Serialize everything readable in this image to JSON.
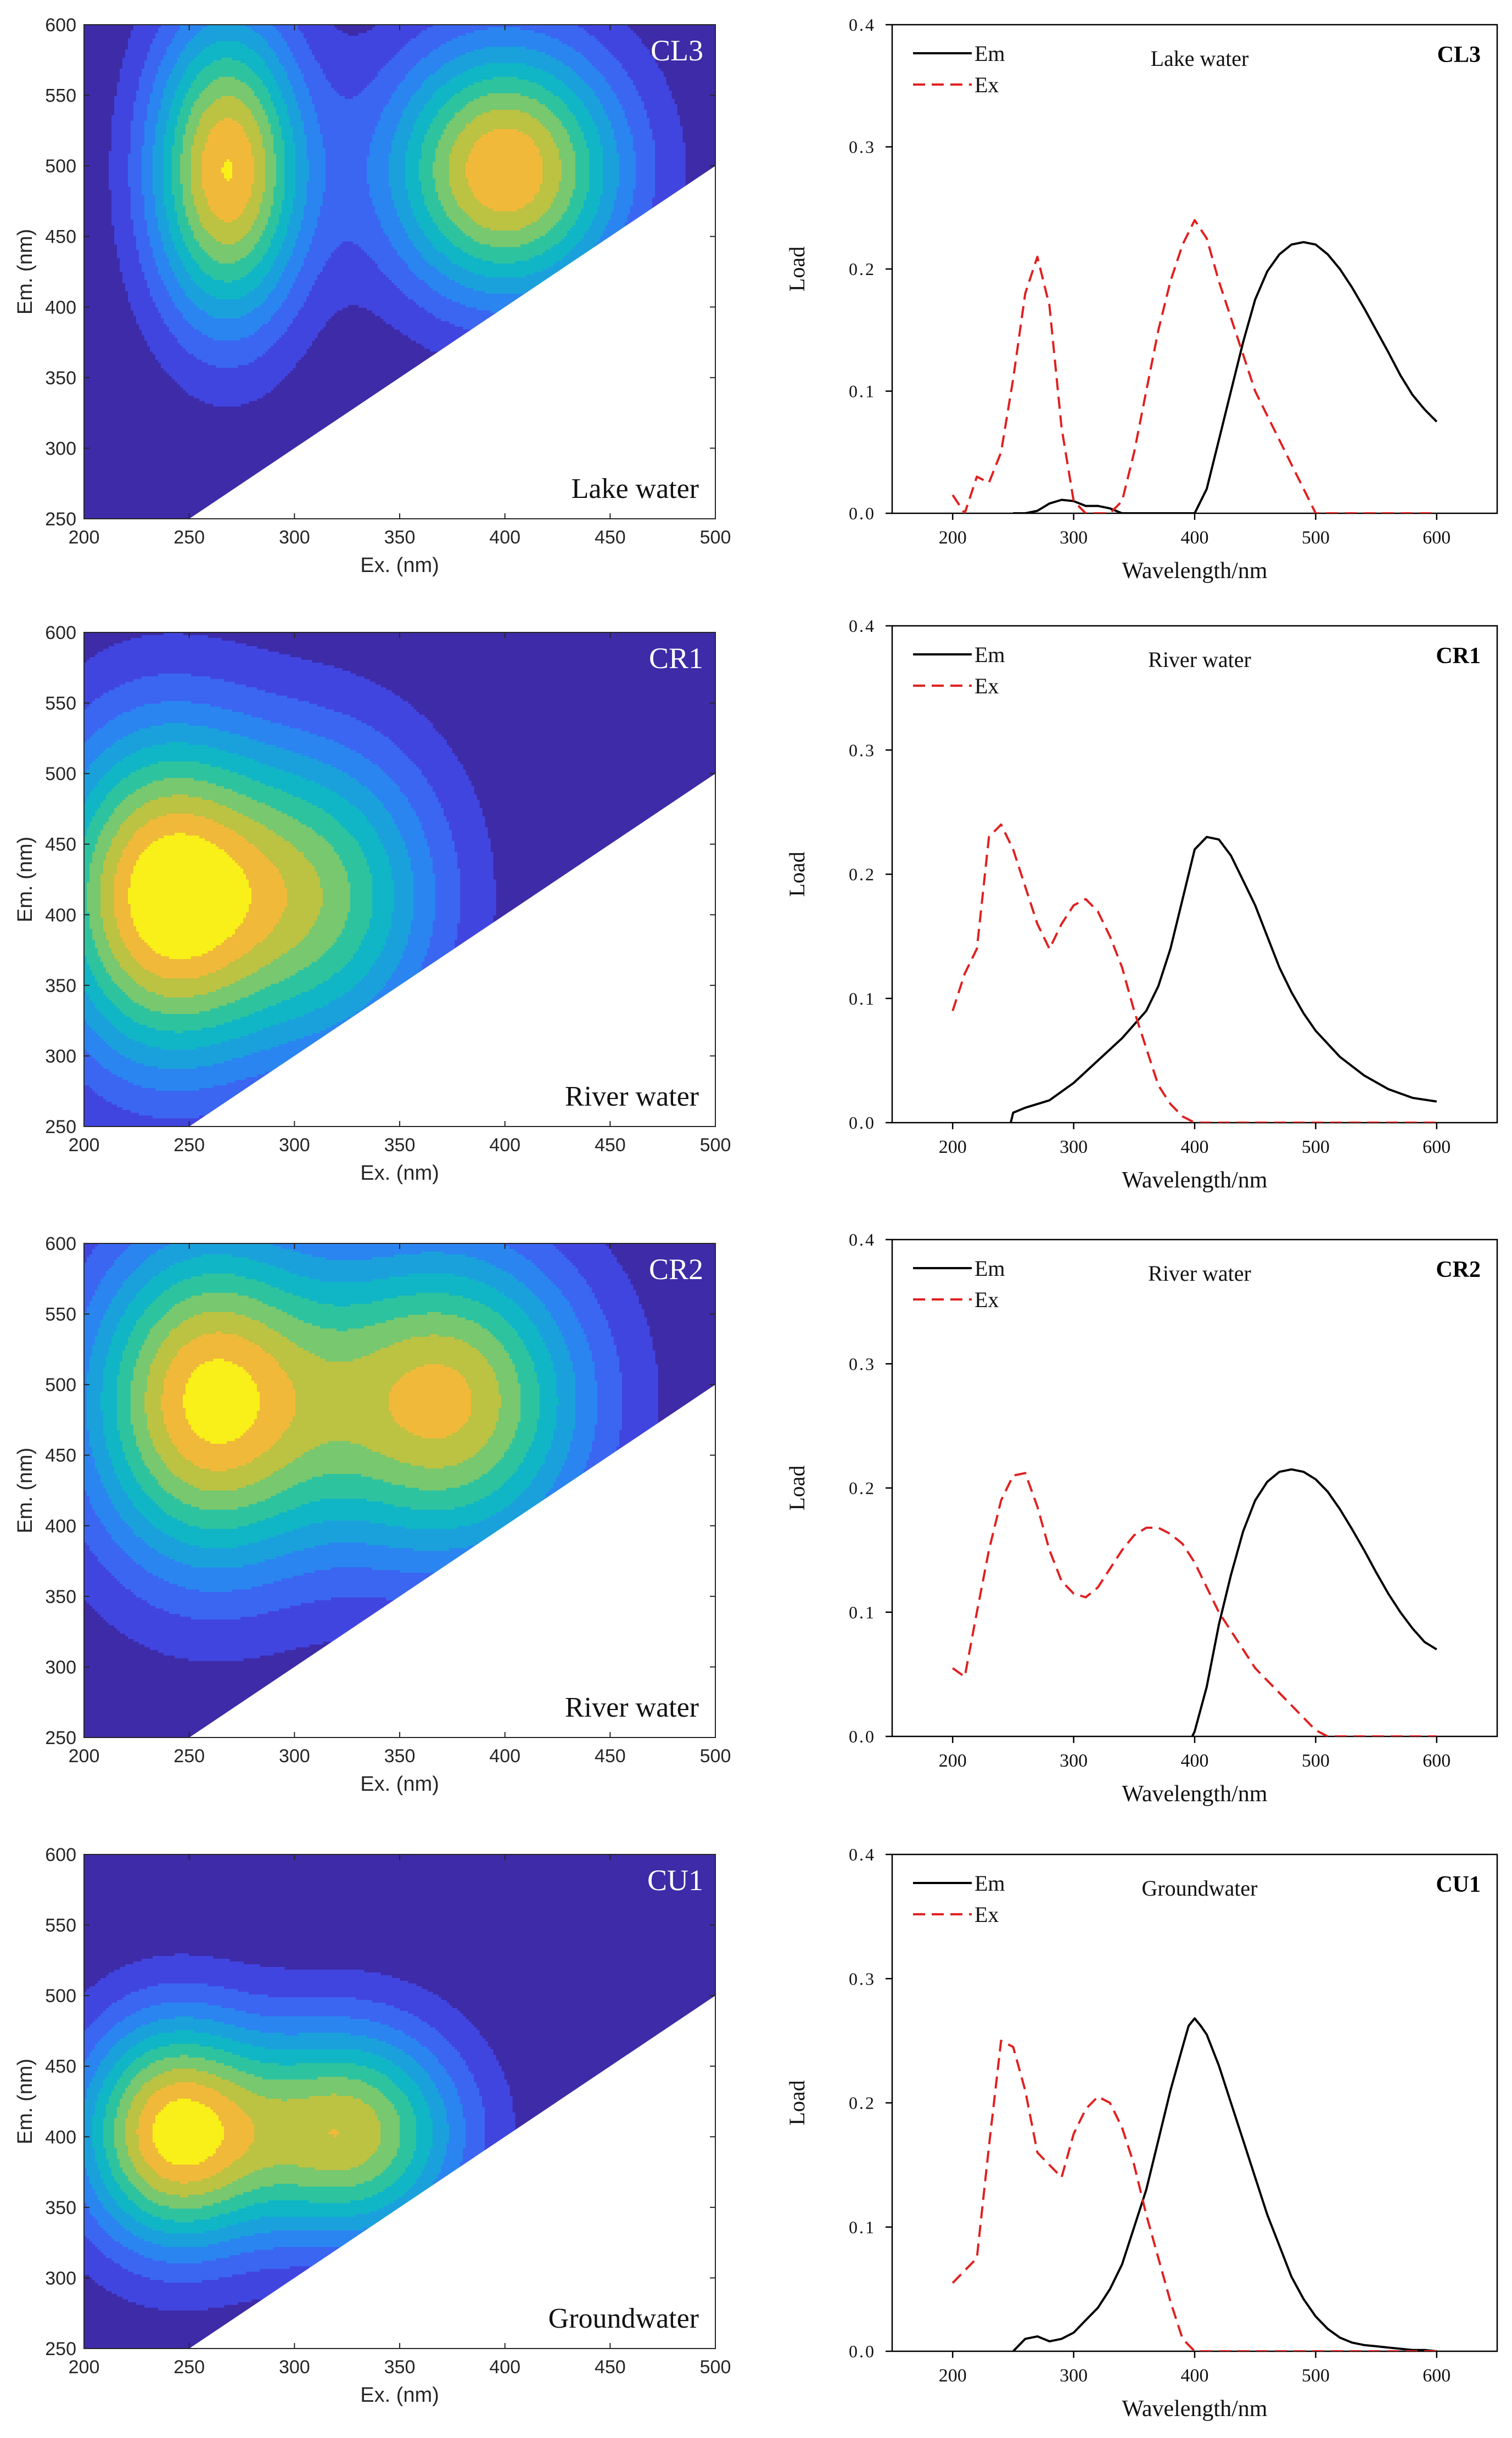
{
  "chart_data": [
    {
      "type": "heatmap",
      "component": "CL3",
      "water_label": "Lake water",
      "xlabel": "Ex. (nm)",
      "ylabel": "Em. (nm)",
      "xlim": [
        200,
        500
      ],
      "ylim": [
        250,
        600
      ],
      "xticks": [
        "200",
        "250",
        "300",
        "350",
        "400",
        "450",
        "500"
      ],
      "yticks": [
        "250",
        "300",
        "350",
        "400",
        "450",
        "500",
        "550",
        "600"
      ],
      "peaks": [
        {
          "ex": 268,
          "em": 497,
          "level": 10,
          "sx": 26,
          "sy": 78
        },
        {
          "ex": 400,
          "em": 497,
          "level": 10,
          "sx": 40,
          "sy": 65
        }
      ]
    },
    {
      "type": "line",
      "component": "CL3",
      "title": "Lake water",
      "xlabel": "Wavelength/nm",
      "ylabel": "Load",
      "xlim": [
        150,
        650
      ],
      "ylim": [
        0,
        0.4
      ],
      "xticks": [
        "200",
        "300",
        "400",
        "500",
        "600"
      ],
      "yticks": [
        "0.0",
        "0.1",
        "0.2",
        "0.3",
        "0.4"
      ],
      "legend": [
        "Em",
        "Ex"
      ],
      "series": [
        {
          "name": "Em",
          "x": [
            250,
            260,
            270,
            280,
            290,
            300,
            310,
            320,
            330,
            340,
            400,
            410,
            420,
            430,
            440,
            450,
            460,
            470,
            480,
            490,
            500,
            510,
            520,
            530,
            540,
            550,
            560,
            570,
            580,
            590,
            600
          ],
          "y": [
            0.0,
            0.0,
            0.002,
            0.008,
            0.011,
            0.01,
            0.006,
            0.006,
            0.004,
            0.0,
            0.0,
            0.02,
            0.06,
            0.1,
            0.14,
            0.175,
            0.198,
            0.212,
            0.22,
            0.222,
            0.22,
            0.212,
            0.2,
            0.185,
            0.168,
            0.15,
            0.132,
            0.113,
            0.097,
            0.085,
            0.075
          ]
        },
        {
          "name": "Ex",
          "x": [
            200,
            210,
            220,
            230,
            240,
            250,
            260,
            270,
            280,
            290,
            300,
            310,
            320,
            330,
            340,
            350,
            360,
            370,
            380,
            390,
            400,
            410,
            420,
            430,
            440,
            450,
            460,
            470,
            480,
            490,
            500,
            510,
            600
          ],
          "y": [
            0.015,
            0.0,
            0.03,
            0.025,
            0.05,
            0.11,
            0.18,
            0.21,
            0.17,
            0.07,
            0.01,
            0.0,
            0.0,
            0.0,
            0.01,
            0.05,
            0.1,
            0.15,
            0.19,
            0.22,
            0.24,
            0.225,
            0.19,
            0.16,
            0.13,
            0.1,
            0.08,
            0.06,
            0.04,
            0.02,
            0.0,
            0.0,
            0.0
          ]
        }
      ]
    },
    {
      "type": "heatmap",
      "component": "CR1",
      "water_label": "River water",
      "xlabel": "Ex. (nm)",
      "ylabel": "Em. (nm)",
      "xlim": [
        200,
        500
      ],
      "ylim": [
        250,
        600
      ],
      "xticks": [
        "200",
        "250",
        "300",
        "350",
        "400",
        "450",
        "500"
      ],
      "yticks": [
        "250",
        "300",
        "350",
        "400",
        "450",
        "500",
        "550",
        "600"
      ],
      "peaks": [
        {
          "ex": 235,
          "em": 413,
          "level": 10,
          "sx": 38,
          "sy": 85
        },
        {
          "ex": 313,
          "em": 413,
          "level": 6.8,
          "sx": 42,
          "sy": 80
        }
      ]
    },
    {
      "type": "line",
      "component": "CR1",
      "title": "River water",
      "xlabel": "Wavelength/nm",
      "ylabel": "Load",
      "xlim": [
        150,
        650
      ],
      "ylim": [
        0,
        0.4
      ],
      "xticks": [
        "200",
        "300",
        "400",
        "500",
        "600"
      ],
      "yticks": [
        "0.0",
        "0.1",
        "0.2",
        "0.3",
        "0.4"
      ],
      "legend": [
        "Em",
        "Ex"
      ],
      "series": [
        {
          "name": "Em",
          "x": [
            248,
            250,
            260,
            280,
            300,
            320,
            340,
            360,
            370,
            380,
            390,
            400,
            410,
            420,
            430,
            440,
            450,
            460,
            470,
            480,
            490,
            500,
            520,
            540,
            560,
            580,
            600
          ],
          "y": [
            0.0,
            0.008,
            0.012,
            0.018,
            0.032,
            0.05,
            0.068,
            0.09,
            0.11,
            0.14,
            0.18,
            0.22,
            0.23,
            0.228,
            0.215,
            0.195,
            0.175,
            0.15,
            0.125,
            0.105,
            0.088,
            0.074,
            0.053,
            0.038,
            0.027,
            0.02,
            0.017
          ]
        },
        {
          "name": "Ex",
          "x": [
            200,
            210,
            220,
            230,
            240,
            250,
            260,
            270,
            280,
            290,
            300,
            310,
            320,
            330,
            340,
            350,
            360,
            370,
            380,
            390,
            400,
            600
          ],
          "y": [
            0.09,
            0.12,
            0.14,
            0.23,
            0.24,
            0.22,
            0.19,
            0.16,
            0.14,
            0.16,
            0.175,
            0.18,
            0.17,
            0.15,
            0.125,
            0.09,
            0.06,
            0.03,
            0.015,
            0.005,
            0.0,
            0.0
          ]
        }
      ]
    },
    {
      "type": "heatmap",
      "component": "CR2",
      "water_label": "River water",
      "xlabel": "Ex. (nm)",
      "ylabel": "Em. (nm)",
      "xlim": [
        200,
        500
      ],
      "ylim": [
        250,
        600
      ],
      "xticks": [
        "200",
        "250",
        "300",
        "350",
        "400",
        "450",
        "500"
      ],
      "yticks": [
        "250",
        "300",
        "350",
        "400",
        "450",
        "500",
        "550",
        "600"
      ],
      "peaks": [
        {
          "ex": 258,
          "em": 488,
          "level": 10,
          "sx": 42,
          "sy": 85
        },
        {
          "ex": 372,
          "em": 488,
          "level": 9.2,
          "sx": 48,
          "sy": 80
        }
      ]
    },
    {
      "type": "line",
      "component": "CR2",
      "title": "River water",
      "xlabel": "Wavelength/nm",
      "ylabel": "Load",
      "xlim": [
        150,
        650
      ],
      "ylim": [
        0,
        0.4
      ],
      "xticks": [
        "200",
        "300",
        "400",
        "500",
        "600"
      ],
      "yticks": [
        "0.0",
        "0.1",
        "0.2",
        "0.3",
        "0.4"
      ],
      "legend": [
        "Em",
        "Ex"
      ],
      "series": [
        {
          "name": "Em",
          "x": [
            398,
            400,
            410,
            420,
            430,
            440,
            450,
            460,
            470,
            480,
            490,
            500,
            510,
            520,
            530,
            540,
            550,
            560,
            570,
            580,
            590,
            600
          ],
          "y": [
            0.0,
            0.004,
            0.04,
            0.09,
            0.13,
            0.165,
            0.19,
            0.205,
            0.213,
            0.215,
            0.213,
            0.207,
            0.197,
            0.183,
            0.167,
            0.15,
            0.132,
            0.115,
            0.1,
            0.087,
            0.076,
            0.07
          ]
        },
        {
          "name": "Ex",
          "x": [
            200,
            210,
            220,
            230,
            240,
            250,
            260,
            270,
            280,
            290,
            300,
            310,
            320,
            330,
            340,
            350,
            360,
            370,
            380,
            390,
            400,
            410,
            420,
            430,
            440,
            450,
            460,
            470,
            480,
            490,
            500,
            510,
            600
          ],
          "y": [
            0.055,
            0.048,
            0.1,
            0.15,
            0.19,
            0.21,
            0.212,
            0.185,
            0.15,
            0.125,
            0.115,
            0.112,
            0.12,
            0.135,
            0.15,
            0.162,
            0.168,
            0.168,
            0.163,
            0.155,
            0.14,
            0.12,
            0.1,
            0.085,
            0.07,
            0.055,
            0.045,
            0.035,
            0.025,
            0.015,
            0.005,
            0.0,
            0.0
          ]
        }
      ]
    },
    {
      "type": "heatmap",
      "component": "CU1",
      "water_label": "Groundwater",
      "xlabel": "Ex. (nm)",
      "ylabel": "Em. (nm)",
      "xlim": [
        200,
        500
      ],
      "ylim": [
        250,
        600
      ],
      "xticks": [
        "200",
        "250",
        "300",
        "350",
        "400",
        "450",
        "500"
      ],
      "yticks": [
        "250",
        "300",
        "350",
        "400",
        "450",
        "500",
        "550",
        "600"
      ],
      "peaks": [
        {
          "ex": 242,
          "em": 403,
          "level": 10,
          "sx": 32,
          "sy": 58
        },
        {
          "ex": 326,
          "em": 403,
          "level": 8.6,
          "sx": 38,
          "sy": 55
        }
      ]
    },
    {
      "type": "line",
      "component": "CU1",
      "title": "Groundwater",
      "xlabel": "Wavelength/nm",
      "ylabel": "Load",
      "xlim": [
        150,
        650
      ],
      "ylim": [
        0,
        0.4
      ],
      "xticks": [
        "200",
        "300",
        "400",
        "500",
        "600"
      ],
      "yticks": [
        "0.0",
        "0.1",
        "0.2",
        "0.3",
        "0.4"
      ],
      "legend": [
        "Em",
        "Ex"
      ],
      "series": [
        {
          "name": "Em",
          "x": [
            250,
            255,
            260,
            270,
            280,
            290,
            300,
            310,
            320,
            330,
            340,
            350,
            360,
            370,
            380,
            390,
            395,
            400,
            405,
            410,
            420,
            430,
            440,
            450,
            460,
            470,
            480,
            490,
            500,
            510,
            520,
            530,
            540,
            550,
            560,
            570,
            580,
            590,
            600
          ],
          "y": [
            0.0,
            0.005,
            0.01,
            0.012,
            0.008,
            0.01,
            0.015,
            0.025,
            0.035,
            0.05,
            0.07,
            0.1,
            0.13,
            0.17,
            0.21,
            0.245,
            0.262,
            0.268,
            0.262,
            0.255,
            0.23,
            0.2,
            0.17,
            0.14,
            0.11,
            0.085,
            0.06,
            0.042,
            0.028,
            0.018,
            0.011,
            0.007,
            0.005,
            0.004,
            0.003,
            0.002,
            0.001,
            0.001,
            0.0
          ]
        },
        {
          "name": "Ex",
          "x": [
            200,
            210,
            220,
            230,
            240,
            250,
            260,
            270,
            280,
            290,
            300,
            310,
            320,
            330,
            340,
            350,
            360,
            370,
            380,
            390,
            400,
            600
          ],
          "y": [
            0.055,
            0.065,
            0.075,
            0.165,
            0.25,
            0.245,
            0.21,
            0.16,
            0.15,
            0.14,
            0.175,
            0.195,
            0.205,
            0.2,
            0.18,
            0.15,
            0.11,
            0.075,
            0.04,
            0.01,
            0.0,
            0.0
          ]
        }
      ]
    }
  ]
}
